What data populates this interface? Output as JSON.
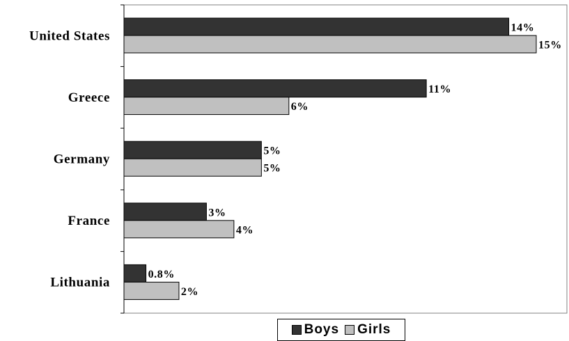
{
  "chart_data": {
    "type": "bar",
    "orientation": "horizontal",
    "categories": [
      "United States",
      "Greece",
      "Germany",
      "France",
      "Lithuania"
    ],
    "series": [
      {
        "name": "Boys",
        "values": [
          14,
          11,
          5,
          3,
          0.8
        ],
        "labels": [
          "14%",
          "11%",
          "5%",
          "3%",
          "0.8%"
        ],
        "color": "#333333"
      },
      {
        "name": "Girls",
        "values": [
          15,
          6,
          5,
          4,
          2
        ],
        "labels": [
          "15%",
          "6%",
          "5%",
          "4%",
          "2%"
        ],
        "color": "#c0c0c0"
      }
    ],
    "xlim": [
      0,
      15
    ],
    "grid": false,
    "legend": "bottom"
  }
}
